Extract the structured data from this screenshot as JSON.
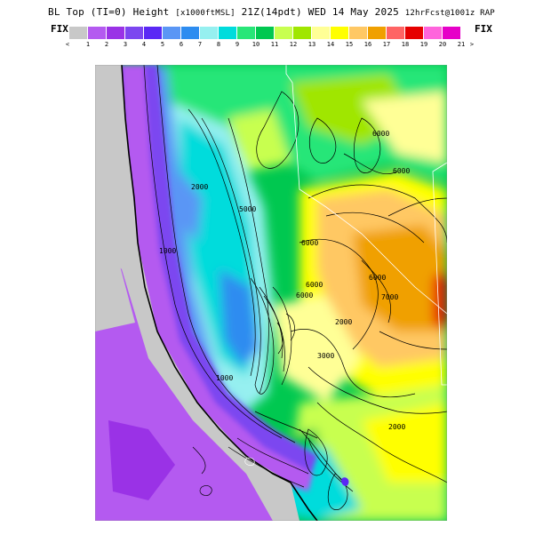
{
  "title": {
    "main": "BL Top (TI=0) Height",
    "units": "[x1000ftMSL]",
    "valid": "21Z(14pdt) WED 14 May 2025",
    "model": "12hrFcst@1001z RAP"
  },
  "fix_left": "FIX",
  "fix_right": "FIX",
  "scale": {
    "under": "<",
    "over": ">",
    "labels": [
      "1",
      "2",
      "3",
      "4",
      "5",
      "6",
      "7",
      "8",
      "9",
      "10",
      "11",
      "12",
      "13",
      "14",
      "15",
      "16",
      "17",
      "18",
      "19",
      "20",
      "21"
    ],
    "colors": [
      "#c8c8c8",
      "#b45af0",
      "#9a32e6",
      "#7c46f0",
      "#5a28f5",
      "#5a96f5",
      "#2d8cf0",
      "#96f0f0",
      "#00dcdc",
      "#28e678",
      "#00c850",
      "#c8ff50",
      "#a0e600",
      "#ffff96",
      "#ffff00",
      "#ffc864",
      "#f0a000",
      "#ff6464",
      "#e60000",
      "#ff64dc",
      "#e600c8"
    ]
  },
  "contour_labels": [
    "6000",
    "6000",
    "6000",
    "5000",
    "6000",
    "6000",
    "6000",
    "1000",
    "2000",
    "1000",
    "2000",
    "7000",
    "3000",
    "2000"
  ]
}
